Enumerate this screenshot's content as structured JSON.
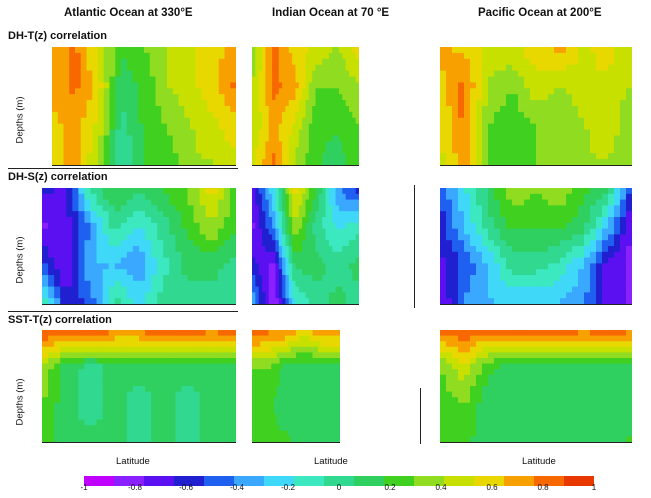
{
  "columns": [
    {
      "title": "Atlantic Ocean at 330°E"
    },
    {
      "title": "Indian Ocean at 70 °E"
    },
    {
      "title": "Pacific Ocean at 200°E"
    }
  ],
  "rows": [
    {
      "title": "DH-T(z) correlation",
      "ylabel": "Depths (m)"
    },
    {
      "title": "DH-S(z) correlation",
      "ylabel": "Depths (m)"
    },
    {
      "title": "SST-T(z) correlation",
      "ylabel": "Depths (m)"
    }
  ],
  "xlabel": "Latitude",
  "colors": {
    "palette": [
      "#c000ff",
      "#8a20ff",
      "#5a10f0",
      "#2020d0",
      "#2060f0",
      "#3aa8ff",
      "#40d8f8",
      "#3ce8c0",
      "#30d890",
      "#30d060",
      "#40d020",
      "#90dc20",
      "#c8e000",
      "#e8d800",
      "#f8a000",
      "#f86800",
      "#e83800"
    ]
  },
  "chart_data": {
    "type": "heatmap",
    "title": "",
    "panels_layout": "3 rows x 3 columns",
    "colorbar": {
      "ticks": [
        -1,
        -0.8,
        -0.6,
        -0.4,
        -0.2,
        0,
        0.2,
        0.4,
        0.6,
        0.8,
        1
      ],
      "tick_labels": [
        "-1",
        "-0.8",
        "-0.6",
        "-0.4",
        "-0.2",
        "0",
        "0.2",
        "0.4",
        "0.6",
        "0.8",
        "1"
      ],
      "range": [
        -1,
        1
      ],
      "orientation": "horizontal",
      "placement": "bottom"
    },
    "panels": [
      {
        "row": "DH-T(z) correlation",
        "column": "Atlantic Ocean at 330°E",
        "approx_values": [
          [
            0.7,
            0.8,
            0.5,
            0.2,
            0.3,
            0.4,
            0.5,
            0.6,
            0.7
          ],
          [
            0.7,
            0.8,
            0.6,
            0.1,
            0.2,
            0.4,
            0.5,
            0.6,
            0.8
          ],
          [
            0.6,
            0.7,
            0.5,
            0.0,
            0.2,
            0.3,
            0.4,
            0.5,
            0.6
          ],
          [
            0.6,
            0.7,
            0.4,
            -0.1,
            0.2,
            0.2,
            0.4,
            0.4,
            0.5
          ]
        ]
      },
      {
        "row": "DH-T(z) correlation",
        "column": "Indian Ocean at 70 °E",
        "approx_values": [
          [
            0.3,
            0.8,
            0.6,
            0.5,
            0.4,
            0.6
          ],
          [
            0.4,
            0.8,
            0.7,
            0.3,
            0.3,
            0.4
          ],
          [
            0.4,
            0.7,
            0.5,
            0.2,
            0.2,
            0.3
          ],
          [
            0.5,
            0.8,
            0.4,
            0.2,
            0.1,
            0.3
          ]
        ]
      },
      {
        "row": "DH-T(z) correlation",
        "column": "Pacific Ocean at 200°E",
        "approx_values": [
          [
            0.7,
            0.6,
            0.5,
            0.5,
            0.6,
            0.7,
            0.5,
            0.6,
            0.4
          ],
          [
            0.6,
            0.8,
            0.4,
            0.3,
            0.5,
            0.4,
            0.5,
            0.5,
            0.4
          ],
          [
            0.5,
            0.8,
            0.3,
            0.2,
            0.3,
            0.3,
            0.4,
            0.5,
            0.3
          ],
          [
            0.5,
            0.7,
            0.3,
            0.2,
            0.3,
            0.3,
            0.4,
            0.4,
            0.3
          ]
        ]
      },
      {
        "row": "DH-S(z) correlation",
        "column": "Atlantic Ocean at 330°E",
        "approx_values": [
          [
            -0.6,
            -0.7,
            0.0,
            0.2,
            0.1,
            0.2,
            0.3,
            0.6,
            0.2
          ],
          [
            -0.8,
            -0.7,
            -0.4,
            0.0,
            -0.2,
            0.0,
            0.2,
            0.4,
            0.2
          ],
          [
            -0.5,
            -0.8,
            -0.3,
            -0.3,
            -0.4,
            -0.1,
            0.1,
            0.1,
            0.0
          ],
          [
            0.0,
            -0.6,
            -0.5,
            0.0,
            -0.2,
            0.0,
            0.0,
            0.0,
            0.0
          ]
        ]
      },
      {
        "row": "DH-S(z) correlation",
        "column": "Indian Ocean at 70 °E",
        "approx_values": [
          [
            -0.7,
            -0.2,
            0.6,
            0.2,
            -0.4,
            -0.6
          ],
          [
            -0.8,
            -0.4,
            0.4,
            0.0,
            -0.2,
            -0.1
          ],
          [
            -0.6,
            -0.8,
            0.1,
            0.1,
            0.0,
            0.1
          ],
          [
            -0.3,
            -0.9,
            -0.2,
            0.0,
            0.1,
            0.0
          ]
        ]
      },
      {
        "row": "DH-S(z) correlation",
        "column": "Pacific Ocean at 200°E",
        "approx_values": [
          [
            -0.5,
            -0.2,
            0.1,
            0.4,
            0.3,
            0.4,
            0.2,
            0.1,
            -0.6
          ],
          [
            -0.6,
            -0.3,
            0.0,
            0.2,
            0.2,
            0.2,
            0.1,
            -0.3,
            -0.8
          ],
          [
            -0.7,
            -0.5,
            -0.3,
            0.0,
            0.0,
            -0.1,
            -0.3,
            -0.7,
            -0.8
          ],
          [
            -0.8,
            -0.4,
            -0.3,
            -0.3,
            -0.3,
            -0.3,
            -0.4,
            -0.7,
            -0.8
          ]
        ]
      },
      {
        "row": "SST-T(z) correlation",
        "column": "Atlantic Ocean at 330°E",
        "approx_values": [
          [
            0.9,
            0.9,
            0.9,
            0.8,
            0.8,
            0.9,
            0.9,
            0.8,
            0.9
          ],
          [
            0.4,
            0.1,
            0.0,
            0.1,
            0.1,
            0.1,
            0.1,
            0.1,
            0.1
          ],
          [
            0.3,
            0.1,
            0.0,
            0.1,
            0.0,
            0.1,
            0.0,
            0.1,
            0.1
          ],
          [
            0.3,
            0.1,
            0.1,
            0.1,
            0.0,
            0.1,
            0.0,
            0.1,
            0.1
          ]
        ]
      },
      {
        "row": "SST-T(z) correlation",
        "column": "Indian Ocean at 70 °E",
        "approx_values": [
          [
            0.9,
            0.8,
            0.8,
            0.6,
            0.8,
            0.8
          ],
          [
            0.3,
            0.3,
            0.1,
            0.1,
            0.1,
            0.1
          ],
          [
            0.2,
            0.2,
            0.1,
            0.1,
            0.1,
            0.1
          ],
          [
            0.2,
            0.2,
            0.2,
            0.1,
            0.1,
            0.1
          ]
        ]
      },
      {
        "row": "SST-T(z) correlation",
        "column": "Pacific Ocean at 200°E",
        "approx_values": [
          [
            0.8,
            0.9,
            0.8,
            0.9,
            0.9,
            0.9,
            0.8,
            0.9,
            0.8
          ],
          [
            0.3,
            0.5,
            0.2,
            0.1,
            0.1,
            0.1,
            0.1,
            0.1,
            0.1
          ],
          [
            0.2,
            0.3,
            0.1,
            0.1,
            0.1,
            0.1,
            0.1,
            0.1,
            0.1
          ],
          [
            0.2,
            0.2,
            0.1,
            0.1,
            0.1,
            0.1,
            0.1,
            0.1,
            0.2
          ]
        ]
      }
    ]
  }
}
